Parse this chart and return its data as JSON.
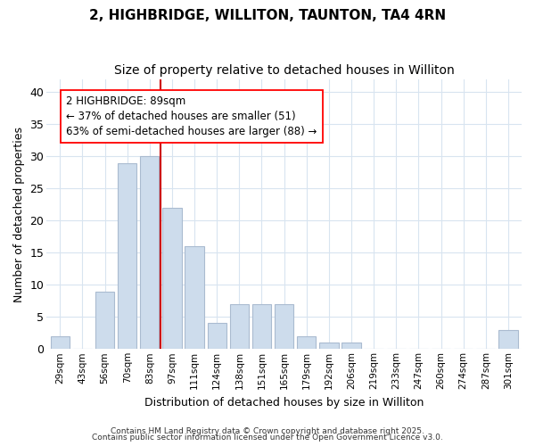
{
  "title_line1": "2, HIGHBRIDGE, WILLITON, TAUNTON, TA4 4RN",
  "title_line2": "Size of property relative to detached houses in Williton",
  "xlabel": "Distribution of detached houses by size in Williton",
  "ylabel": "Number of detached properties",
  "bar_labels": [
    "29sqm",
    "43sqm",
    "56sqm",
    "70sqm",
    "83sqm",
    "97sqm",
    "111sqm",
    "124sqm",
    "138sqm",
    "151sqm",
    "165sqm",
    "179sqm",
    "192sqm",
    "206sqm",
    "219sqm",
    "233sqm",
    "247sqm",
    "260sqm",
    "274sqm",
    "287sqm",
    "301sqm"
  ],
  "bar_values": [
    2,
    0,
    9,
    29,
    30,
    22,
    16,
    4,
    7,
    7,
    7,
    2,
    1,
    1,
    0,
    0,
    0,
    0,
    0,
    0,
    3
  ],
  "bar_color": "#cddcec",
  "bar_edgecolor": "#aabbd0",
  "vline_x": 4.5,
  "vline_color": "#cc0000",
  "annotation_text": "2 HIGHBRIDGE: 89sqm\n← 37% of detached houses are smaller (51)\n63% of semi-detached houses are larger (88) →",
  "ylim": [
    0,
    42
  ],
  "yticks": [
    0,
    5,
    10,
    15,
    20,
    25,
    30,
    35,
    40
  ],
  "background_color": "#ffffff",
  "plot_background": "#ffffff",
  "grid_color": "#d8e4f0",
  "title_fontsize": 11,
  "subtitle_fontsize": 10,
  "footer_line1": "Contains HM Land Registry data © Crown copyright and database right 2025.",
  "footer_line2": "Contains public sector information licensed under the Open Government Licence v3.0."
}
